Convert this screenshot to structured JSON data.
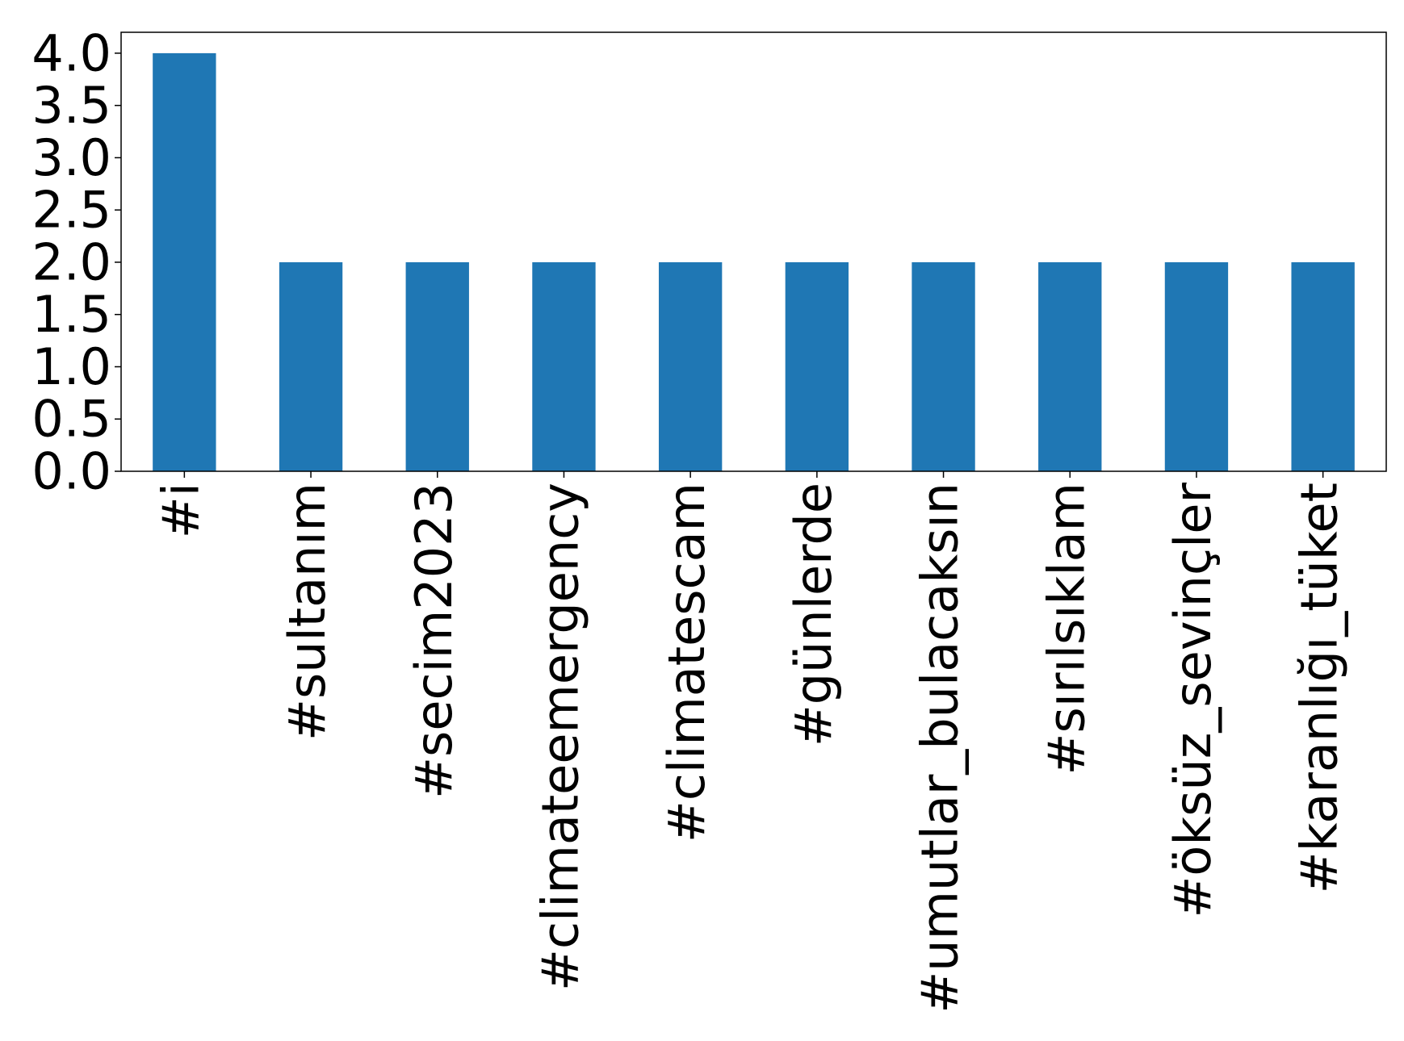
{
  "chart_data": {
    "type": "bar",
    "categories": [
      "#i",
      "#sultanım",
      "#secim2023",
      "#climateemergency",
      "#climatescam",
      "#günlerde",
      "#umutlar_bulacaksın",
      "#sırılsıklam",
      "#öksüz_sevinçler",
      "#karanlığı_tüket"
    ],
    "values": [
      4,
      2,
      2,
      2,
      2,
      2,
      2,
      2,
      2,
      2
    ],
    "color": "#1f77b4",
    "ylim": [
      0,
      4.2
    ],
    "yticks": [
      {
        "value": 0,
        "label": "0.0"
      },
      {
        "value": 0.5,
        "label": "0.5"
      },
      {
        "value": 1,
        "label": "1.0"
      },
      {
        "value": 1.5,
        "label": "1.5"
      },
      {
        "value": 2,
        "label": "2.0"
      },
      {
        "value": 2.5,
        "label": "2.5"
      },
      {
        "value": 3,
        "label": "3.0"
      },
      {
        "value": 3.5,
        "label": "3.5"
      },
      {
        "value": 4,
        "label": "4.0"
      }
    ],
    "grid": false
  }
}
